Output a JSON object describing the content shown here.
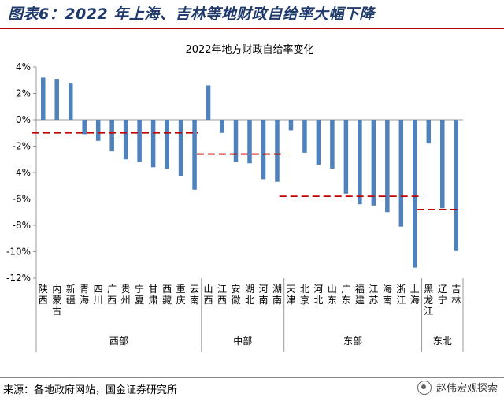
{
  "header": {
    "figure_title": "图表6：2022 年上海、吉林等地财政自给率大幅下降"
  },
  "footer": {
    "source": "来源：各地政府网站，国金证券研究所",
    "watermark": "赵伟宏观探索"
  },
  "chart_data": {
    "type": "bar",
    "title": "2022年地方财政自给率变化",
    "ylim": [
      -12,
      4
    ],
    "yticks": [
      4,
      2,
      0,
      -2,
      -4,
      -6,
      -8,
      -10,
      -12
    ],
    "ytick_labels": [
      "4%",
      "2%",
      "0%",
      "-2%",
      "-4%",
      "-6%",
      "-8%",
      "-10%",
      "-12%"
    ],
    "unit": "%",
    "bar_color": "#4f81bd",
    "avg_line_color": "#c00000",
    "grid": false,
    "categories": [
      "陕西",
      "内蒙古",
      "新疆",
      "青海",
      "四川",
      "广西",
      "贵州",
      "宁夏",
      "甘肃",
      "西藏",
      "重庆",
      "云南",
      "山西",
      "江西",
      "安徽",
      "湖北",
      "河南",
      "湖南",
      "天津",
      "北京",
      "河北",
      "山东",
      "广东",
      "福建",
      "江苏",
      "海南",
      "浙江",
      "上海",
      "黑龙江",
      "辽宁",
      "吉林"
    ],
    "values": [
      3.2,
      3.1,
      2.8,
      -1.1,
      -1.6,
      -2.4,
      -3.0,
      -3.2,
      -3.6,
      -3.7,
      -4.3,
      -5.3,
      2.6,
      -1.0,
      -3.2,
      -3.3,
      -4.5,
      -4.7,
      -0.8,
      -2.5,
      -3.4,
      -3.7,
      -5.6,
      -6.4,
      -6.5,
      -7.0,
      -8.1,
      -11.2,
      -1.8,
      -6.7,
      -9.9
    ],
    "groups": [
      {
        "name": "西部",
        "start": 0,
        "end": 11,
        "average": -1.0
      },
      {
        "name": "中部",
        "start": 12,
        "end": 17,
        "average": -2.6
      },
      {
        "name": "东部",
        "start": 18,
        "end": 27,
        "average": -5.8
      },
      {
        "name": "东北",
        "start": 28,
        "end": 30,
        "average": -6.8
      }
    ]
  }
}
